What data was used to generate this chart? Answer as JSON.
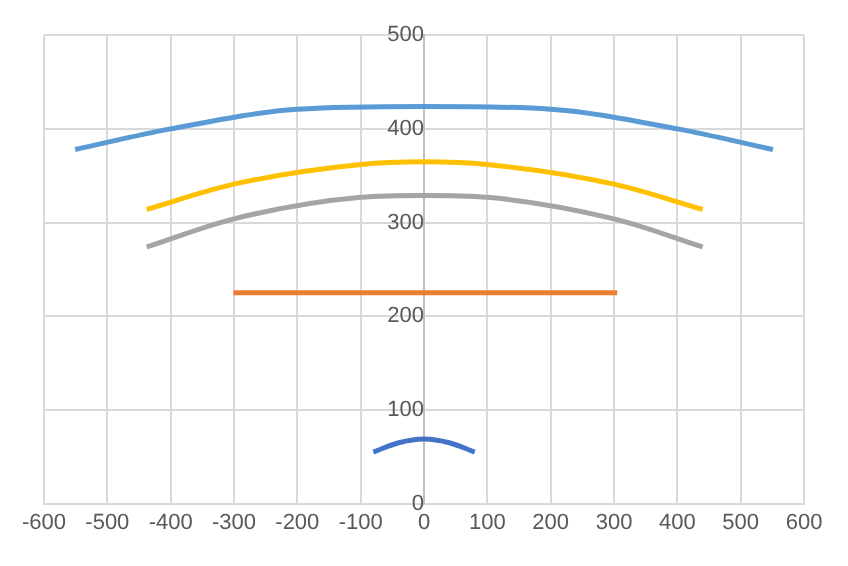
{
  "chart_data": {
    "type": "line",
    "xlim": [
      -600,
      600
    ],
    "xticks": [
      -600,
      -500,
      -400,
      -300,
      -200,
      -100,
      0,
      100,
      200,
      300,
      400,
      500,
      600
    ],
    "ylim": [
      0,
      500
    ],
    "yticks": [
      0,
      100,
      200,
      300,
      400,
      500
    ],
    "grid": true,
    "legend": false,
    "marker": "none",
    "line_style": "solid",
    "series": [
      {
        "color": "#5b9bd5",
        "x": [
          -551,
          -400,
          -200,
          0,
          200,
          400,
          551
        ],
        "values": [
          378,
          400,
          421,
          424,
          421,
          400,
          378
        ]
      },
      {
        "color": "#ed7d31",
        "x": [
          -301,
          305
        ],
        "values": [
          225,
          225
        ]
      },
      {
        "color": "#a5a5a5",
        "x": [
          -438,
          -300,
          -100,
          0,
          100,
          300,
          440
        ],
        "values": [
          274,
          304,
          327,
          329,
          327,
          304,
          274
        ]
      },
      {
        "color": "#ffc000",
        "x": [
          -438,
          -300,
          -100,
          0,
          100,
          300,
          440
        ],
        "values": [
          314,
          341,
          362,
          365,
          362,
          341,
          314
        ]
      },
      {
        "color": "#4472c4",
        "x": [
          -80,
          -40,
          0,
          40,
          80
        ],
        "values": [
          55,
          65,
          69,
          65,
          55
        ]
      }
    ]
  }
}
